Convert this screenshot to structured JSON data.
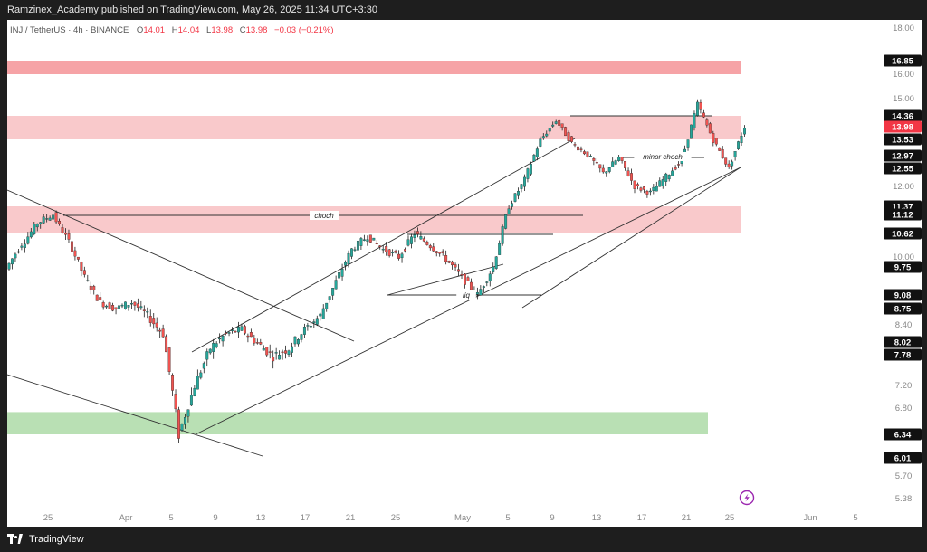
{
  "publisher_line": "Ramzinex_Academy published on TradingView.com, May 26, 2025 11:34 UTC+3:30",
  "legend": {
    "symbol": "INJ / TetherUS · 4h · BINANCE",
    "o_label": "O",
    "o": "14.01",
    "h_label": "H",
    "h": "14.04",
    "l_label": "L",
    "l": "13.98",
    "c_label": "C",
    "c": "13.98",
    "change": "−0.03 (−0.21%)"
  },
  "footer": {
    "brand": "TradingView"
  },
  "colors": {
    "up": "#26a69a",
    "down": "#ef5350",
    "candle": "#1f1f1f",
    "supply_zone": "#f6a3a6",
    "supply_zone_light": "#f9c9cb",
    "demand_zone": "#b9e0b4",
    "axis_text": "#888888",
    "current_price": "#f23645"
  },
  "chart_data": {
    "type": "candlestick",
    "symbol": "INJ / TetherUS",
    "interval": "4h",
    "exchange": "BINANCE",
    "y_axis": {
      "ticks": [
        "18.00",
        "16.00",
        "15.00",
        "12.00",
        "10.00",
        "8.40",
        "7.20",
        "6.80",
        "5.70",
        "5.38"
      ],
      "highlighted_levels": [
        {
          "value": "16.85",
          "style": "dark"
        },
        {
          "value": "14.36",
          "style": "dark"
        },
        {
          "value": "13.98",
          "style": "current"
        },
        {
          "value": "13.53",
          "style": "dark"
        },
        {
          "value": "12.97",
          "style": "dark"
        },
        {
          "value": "12.55",
          "style": "dark"
        },
        {
          "value": "11.37",
          "style": "dark"
        },
        {
          "value": "11.12",
          "style": "dark"
        },
        {
          "value": "10.62",
          "style": "dark"
        },
        {
          "value": "9.75",
          "style": "dark"
        },
        {
          "value": "9.08",
          "style": "dark"
        },
        {
          "value": "8.75",
          "style": "dark"
        },
        {
          "value": "8.02",
          "style": "dark"
        },
        {
          "value": "7.78",
          "style": "dark"
        },
        {
          "value": "6.34",
          "style": "dark"
        },
        {
          "value": "6.01",
          "style": "dark"
        }
      ]
    },
    "x_axis": {
      "ticks": [
        "25",
        "Apr",
        "5",
        "9",
        "13",
        "17",
        "21",
        "25",
        "May",
        "5",
        "9",
        "13",
        "17",
        "21",
        "25",
        "Jun",
        "5"
      ]
    },
    "zones": [
      {
        "kind": "supply",
        "low": 16.0,
        "high": 16.85
      },
      {
        "kind": "supply",
        "low": 13.53,
        "high": 14.36
      },
      {
        "kind": "supply",
        "low": 10.62,
        "high": 11.37
      },
      {
        "kind": "demand",
        "low": 6.34,
        "high": 6.73
      }
    ],
    "annotations": [
      "choch",
      "liq",
      "minor choch"
    ],
    "ohlc_path": [
      [
        9.7,
        10.35
      ],
      [
        10.3,
        10.9
      ],
      [
        10.9,
        11.12
      ],
      [
        11.1,
        10.4
      ],
      [
        10.4,
        9.5
      ],
      [
        9.5,
        8.9
      ],
      [
        8.9,
        8.75
      ],
      [
        8.75,
        8.9
      ],
      [
        8.9,
        8.6
      ],
      [
        8.6,
        8.2
      ],
      [
        8.2,
        6.34
      ],
      [
        6.34,
        7.2
      ],
      [
        7.2,
        7.9
      ],
      [
        7.9,
        8.2
      ],
      [
        8.2,
        8.3
      ],
      [
        8.3,
        8.0
      ],
      [
        8.0,
        7.75
      ],
      [
        7.75,
        7.9
      ],
      [
        7.9,
        8.3
      ],
      [
        8.3,
        8.6
      ],
      [
        8.6,
        9.4
      ],
      [
        9.4,
        10.2
      ],
      [
        10.2,
        10.55
      ],
      [
        10.55,
        10.2
      ],
      [
        10.2,
        10.0
      ],
      [
        10.0,
        10.62
      ],
      [
        10.62,
        10.3
      ],
      [
        10.3,
        9.95
      ],
      [
        9.95,
        9.5
      ],
      [
        9.5,
        9.08
      ],
      [
        9.08,
        9.75
      ],
      [
        9.75,
        11.37
      ],
      [
        11.37,
        12.2
      ],
      [
        12.2,
        13.5
      ],
      [
        13.5,
        14.2
      ],
      [
        14.2,
        13.4
      ],
      [
        13.4,
        13.0
      ],
      [
        13.0,
        12.4
      ],
      [
        12.4,
        12.9
      ],
      [
        12.9,
        12.0
      ],
      [
        12.0,
        11.8
      ],
      [
        11.8,
        12.3
      ],
      [
        12.3,
        12.8
      ],
      [
        12.8,
        14.8
      ],
      [
        14.8,
        13.5
      ],
      [
        13.5,
        12.55
      ],
      [
        12.55,
        13.98
      ]
    ]
  }
}
